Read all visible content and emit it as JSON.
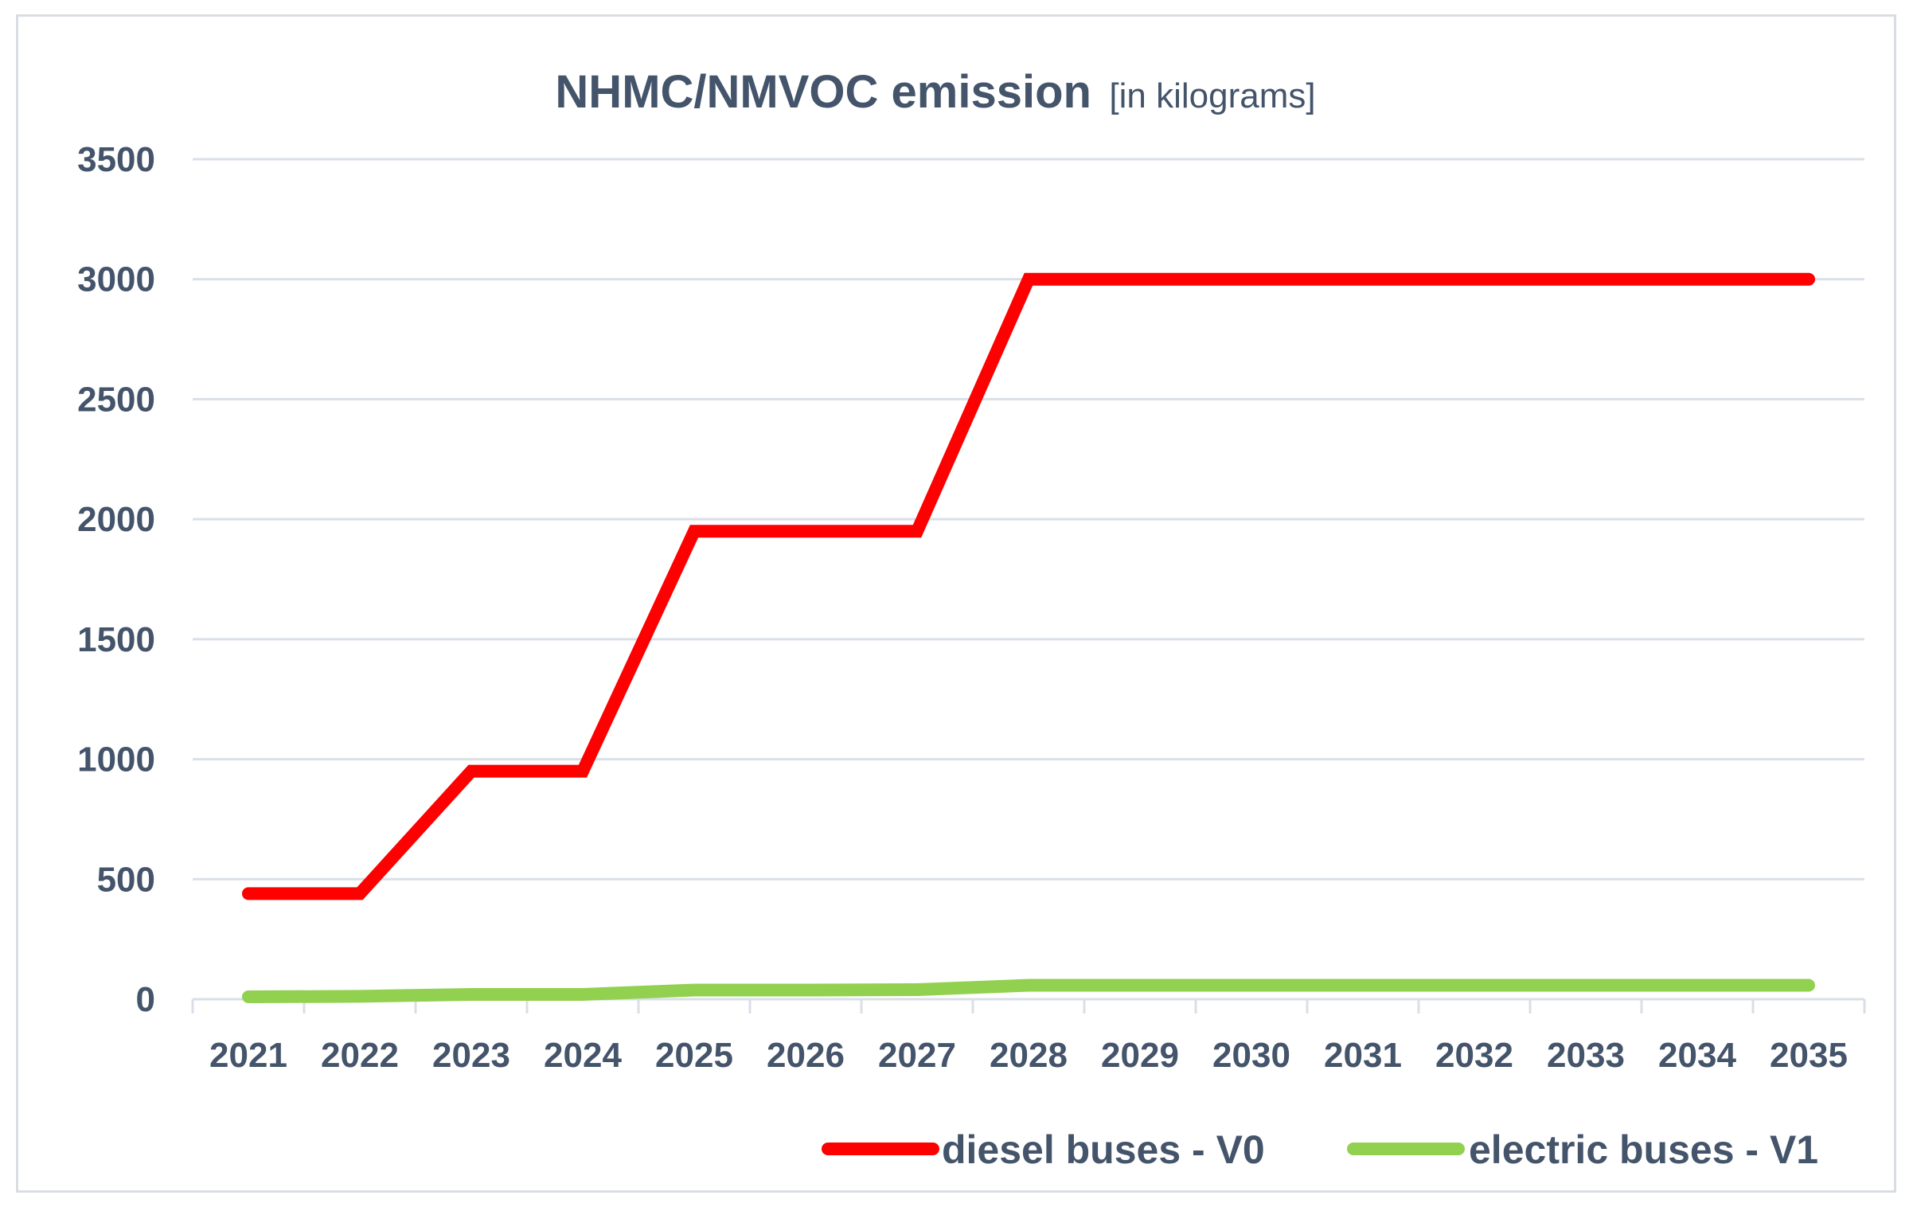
{
  "chart_data": {
    "type": "line",
    "title": "NHMC/NMVOC emission",
    "subtitle": "[in kilograms]",
    "xlabel": "",
    "ylabel": "",
    "categories": [
      "2021",
      "2022",
      "2023",
      "2024",
      "2025",
      "2026",
      "2027",
      "2028",
      "2029",
      "2030",
      "2031",
      "2032",
      "2033",
      "2034",
      "2035"
    ],
    "y_ticks": [
      "0",
      "500",
      "1000",
      "1500",
      "2000",
      "2500",
      "3000",
      "3500"
    ],
    "ylim": [
      0,
      3500
    ],
    "grid": true,
    "legend_position": "bottom-right",
    "series": [
      {
        "name": "diesel buses - V0",
        "color": "#ff0000",
        "values": [
          440,
          440,
          950,
          950,
          1950,
          1950,
          1950,
          3000,
          3000,
          3000,
          3000,
          3000,
          3000,
          3000,
          3000
        ]
      },
      {
        "name": "electric buses - V1",
        "color": "#92d050",
        "values": [
          10,
          12,
          20,
          20,
          38,
          38,
          40,
          58,
          58,
          58,
          58,
          58,
          58,
          58,
          58
        ]
      }
    ]
  }
}
